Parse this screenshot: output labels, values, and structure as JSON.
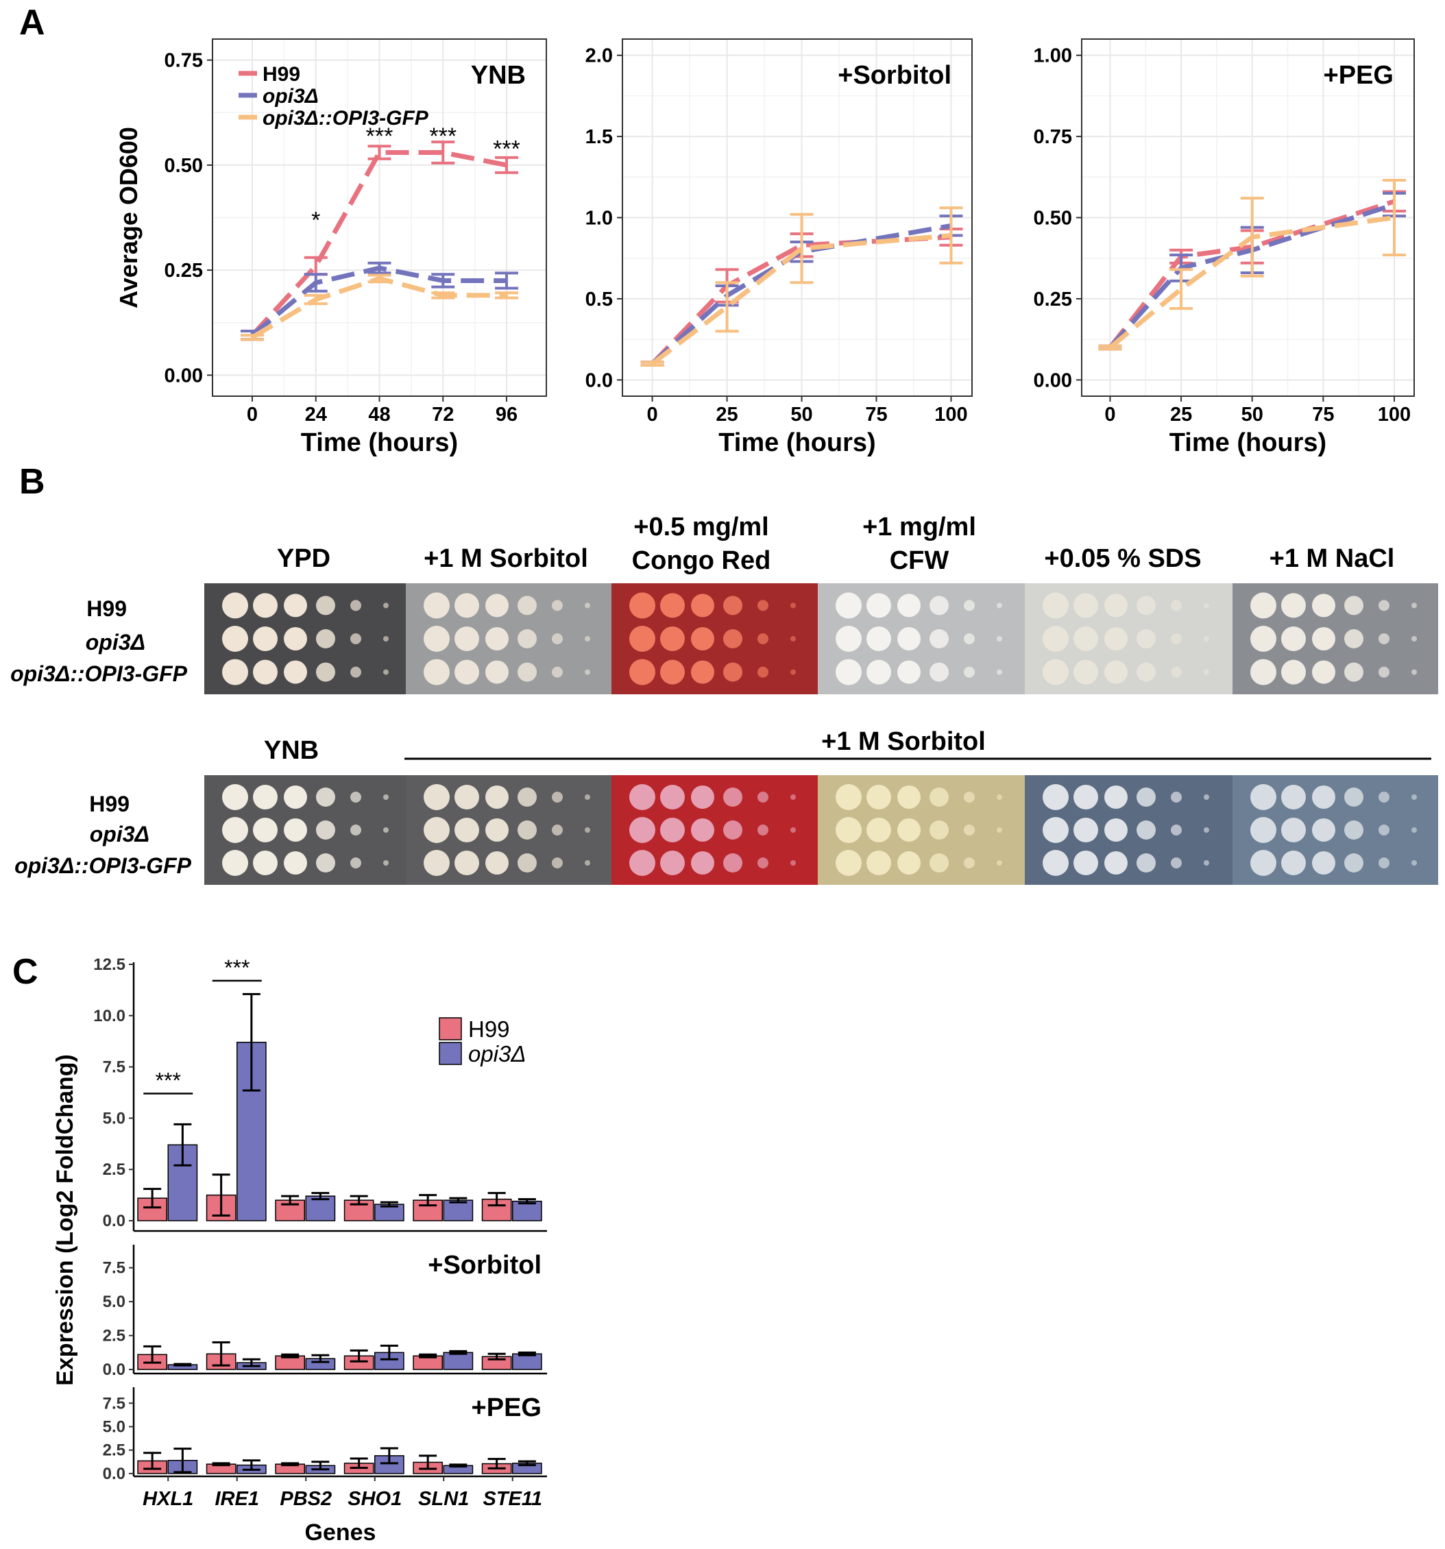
{
  "panels": {
    "a": "A",
    "b": "B",
    "c": "C"
  },
  "colors": {
    "h99": "#e8727f",
    "opi3": "#7474bd",
    "comp": "#f7bf80",
    "grid": "#e8e8e8",
    "text": "#000000"
  },
  "growth_legend": [
    {
      "label": "H99",
      "italic": false,
      "color_key": "h99"
    },
    {
      "label": "opi3Δ",
      "italic": true,
      "color_key": "opi3"
    },
    {
      "label": "opi3Δ::OPI3-GFP",
      "italic": true,
      "color_key": "comp"
    }
  ],
  "plates": {
    "row1_conditions": [
      {
        "line1": "",
        "line2": "YPD",
        "bg": "#4a4a4c",
        "colony": "#efe4d6"
      },
      {
        "line1": "",
        "line2": "+1 M Sorbitol",
        "bg": "#9a9c9e",
        "colony": "#ece4d8"
      },
      {
        "line1": "+0.5 mg/ml",
        "line2": "Congo Red",
        "bg": "#a32a2a",
        "colony": "#f07a60"
      },
      {
        "line1": "+1 mg/ml",
        "line2": "CFW",
        "bg": "#bcbec0",
        "colony": "#f4f2ee"
      },
      {
        "line1": "",
        "line2": "+0.05 % SDS",
        "bg": "#d4d4d0",
        "colony": "#e8e4da"
      },
      {
        "line1": "",
        "line2": "+1 M NaCl",
        "bg": "#8a8e93",
        "colony": "#eeeae2"
      }
    ],
    "row2_first": "YNB",
    "row2_span": "+1 M Sorbitol",
    "row2_plates": [
      {
        "bg": "#58585a",
        "colony": "#f1ece2"
      },
      {
        "bg": "#5d5d5f",
        "colony": "#e8e0d2"
      },
      {
        "bg": "#b8262c",
        "colony": "#e6a0b4"
      },
      {
        "bg": "#c8bb8e",
        "colony": "#f0e6c0"
      },
      {
        "bg": "#5a6b82",
        "colony": "#dfe3e8"
      },
      {
        "bg": "#6c7f94",
        "colony": "#d6dce2"
      }
    ],
    "strains": [
      {
        "text": "H99",
        "italic": false
      },
      {
        "text": "opi3Δ",
        "italic": true
      },
      {
        "text": "opi3Δ::OPI3-GFP",
        "italic": true
      }
    ]
  },
  "chart_data": [
    {
      "type": "line",
      "title": "YNB",
      "xlabel": "Time (hours)",
      "ylabel": "Average OD600",
      "xlim": [
        -15,
        111
      ],
      "ylim": [
        -0.05,
        0.8
      ],
      "xticks": [
        0,
        24,
        48,
        72,
        96
      ],
      "xtick_labels": [
        "0",
        "24",
        "48",
        "72",
        "96"
      ],
      "yticks": [
        0,
        0.25,
        0.5,
        0.75
      ],
      "ytick_labels": [
        "0.00",
        "0.25",
        "0.50",
        "0.75"
      ],
      "series": [
        {
          "name": "H99",
          "color_key": "h99",
          "x": [
            0,
            24,
            48,
            72,
            96
          ],
          "y": [
            0.095,
            0.26,
            0.53,
            0.53,
            0.5
          ],
          "err": [
            0.01,
            0.02,
            0.015,
            0.025,
            0.018
          ]
        },
        {
          "name": "opi3Δ",
          "color_key": "opi3",
          "x": [
            0,
            24,
            48,
            72,
            96
          ],
          "y": [
            0.095,
            0.22,
            0.255,
            0.225,
            0.225
          ],
          "err": [
            0.01,
            0.02,
            0.012,
            0.015,
            0.018
          ]
        },
        {
          "name": "opi3Δ::OPI3-GFP",
          "color_key": "comp",
          "x": [
            0,
            24,
            48,
            72,
            96
          ],
          "y": [
            0.09,
            0.18,
            0.23,
            0.19,
            0.19
          ],
          "err": [
            0.005,
            0.01,
            0.008,
            0.006,
            0.006
          ]
        }
      ],
      "annotations": [
        {
          "x": 24,
          "y": 0.37,
          "text": "*"
        },
        {
          "x": 48,
          "y": 0.57,
          "text": "***"
        },
        {
          "x": 72,
          "y": 0.57,
          "text": "***"
        },
        {
          "x": 96,
          "y": 0.54,
          "text": "***"
        }
      ]
    },
    {
      "type": "line",
      "title": "+Sorbitol",
      "xlabel": "Time (hours)",
      "ylabel": "",
      "xlim": [
        -10,
        107
      ],
      "ylim": [
        -0.1,
        2.1
      ],
      "xticks": [
        0,
        25,
        50,
        75,
        100
      ],
      "xtick_labels": [
        "0",
        "25",
        "50",
        "75",
        "100"
      ],
      "yticks": [
        0,
        0.5,
        1.0,
        1.5,
        2.0
      ],
      "ytick_labels": [
        "0.0",
        "0.5",
        "1.0",
        "1.5",
        "2.0"
      ],
      "series": [
        {
          "name": "H99",
          "color_key": "h99",
          "x": [
            0,
            25,
            50,
            100
          ],
          "y": [
            0.1,
            0.58,
            0.83,
            0.88
          ],
          "err": [
            0.01,
            0.1,
            0.07,
            0.05
          ]
        },
        {
          "name": "opi3Δ",
          "color_key": "opi3",
          "x": [
            0,
            25,
            50,
            100
          ],
          "y": [
            0.1,
            0.52,
            0.79,
            0.95
          ],
          "err": [
            0.01,
            0.06,
            0.06,
            0.06
          ]
        },
        {
          "name": "opi3Δ::OPI3-GFP",
          "color_key": "comp",
          "x": [
            0,
            25,
            50,
            100
          ],
          "y": [
            0.1,
            0.45,
            0.81,
            0.89
          ],
          "err": [
            0.01,
            0.15,
            0.21,
            0.17
          ]
        }
      ],
      "annotations": []
    },
    {
      "type": "line",
      "title": "+PEG",
      "xlabel": "Time (hours)",
      "ylabel": "",
      "xlim": [
        -10,
        107
      ],
      "ylim": [
        -0.05,
        1.05
      ],
      "xticks": [
        0,
        25,
        50,
        75,
        100
      ],
      "xtick_labels": [
        "0",
        "25",
        "50",
        "75",
        "100"
      ],
      "yticks": [
        0,
        0.25,
        0.5,
        0.75,
        1.0
      ],
      "ytick_labels": [
        "0.00",
        "0.25",
        "0.50",
        "0.75",
        "1.00"
      ],
      "series": [
        {
          "name": "H99",
          "color_key": "h99",
          "x": [
            0,
            25,
            50,
            100
          ],
          "y": [
            0.1,
            0.38,
            0.41,
            0.55
          ],
          "err": [
            0.005,
            0.02,
            0.05,
            0.03
          ]
        },
        {
          "name": "opi3Δ",
          "color_key": "opi3",
          "x": [
            0,
            25,
            50,
            100
          ],
          "y": [
            0.1,
            0.345,
            0.4,
            0.54
          ],
          "err": [
            0.005,
            0.04,
            0.07,
            0.035
          ]
        },
        {
          "name": "opi3Δ::OPI3-GFP",
          "color_key": "comp",
          "x": [
            0,
            25,
            50,
            100
          ],
          "y": [
            0.1,
            0.28,
            0.44,
            0.5
          ],
          "err": [
            0.005,
            0.06,
            0.12,
            0.115
          ]
        }
      ],
      "annotations": []
    },
    {
      "type": "bar",
      "title": "",
      "xlabel": "Genes",
      "ylabel": "Expression (Log2 FoldChang)",
      "categories": [
        "HXL1",
        "IRE1",
        "PBS2",
        "SHO1",
        "SLN1",
        "STE11"
      ],
      "legend": [
        {
          "name": "H99",
          "italic": false,
          "color_key": "h99"
        },
        {
          "name": "opi3Δ",
          "italic": true,
          "color_key": "opi3"
        }
      ],
      "panels": [
        {
          "label": "",
          "ylim": [
            -0.5,
            12.6
          ],
          "yticks": [
            0,
            2.5,
            5.0,
            7.5,
            10.0,
            12.5
          ],
          "ytick_labels": [
            "0.0",
            "2.5",
            "5.0",
            "7.5",
            "10.0",
            "12.5"
          ],
          "series": [
            {
              "name": "H99",
              "color_key": "h99",
              "values": [
                1.1,
                1.25,
                1.0,
                1.0,
                1.0,
                1.05
              ],
              "err": [
                0.45,
                1.0,
                0.2,
                0.2,
                0.25,
                0.3
              ]
            },
            {
              "name": "opi3Δ",
              "color_key": "opi3",
              "values": [
                3.7,
                8.7,
                1.2,
                0.8,
                1.0,
                0.95
              ],
              "err": [
                1.0,
                2.35,
                0.15,
                0.1,
                0.1,
                0.1
              ]
            }
          ],
          "significance": [
            {
              "category_index": 0,
              "y": 6.2,
              "text": "***"
            },
            {
              "category_index": 1,
              "y": 11.7,
              "text": "***"
            }
          ]
        },
        {
          "label": "+Sorbitol",
          "ylim": [
            -0.3,
            9.2
          ],
          "yticks": [
            0,
            2.5,
            5.0,
            7.5
          ],
          "ytick_labels": [
            "0.0",
            "2.5",
            "5.0",
            "7.5"
          ],
          "series": [
            {
              "name": "H99",
              "color_key": "h99",
              "values": [
                1.1,
                1.15,
                1.0,
                1.0,
                1.0,
                0.95
              ],
              "err": [
                0.6,
                0.85,
                0.1,
                0.4,
                0.1,
                0.2
              ]
            },
            {
              "name": "opi3Δ",
              "color_key": "opi3",
              "values": [
                0.35,
                0.5,
                0.8,
                1.25,
                1.25,
                1.15
              ],
              "err": [
                0.05,
                0.25,
                0.25,
                0.5,
                0.1,
                0.1
              ]
            }
          ],
          "significance": []
        },
        {
          "label": "+PEG",
          "ylim": [
            -0.3,
            9.2
          ],
          "yticks": [
            0,
            2.5,
            5.0,
            7.5
          ],
          "ytick_labels": [
            "0.0",
            "2.5",
            "5.0",
            "7.5"
          ],
          "series": [
            {
              "name": "H99",
              "color_key": "h99",
              "values": [
                1.35,
                1.0,
                1.0,
                1.1,
                1.2,
                1.05
              ],
              "err": [
                0.85,
                0.1,
                0.1,
                0.5,
                0.7,
                0.5
              ]
            },
            {
              "name": "opi3Δ",
              "color_key": "opi3",
              "values": [
                1.4,
                0.9,
                0.85,
                1.9,
                0.85,
                1.1
              ],
              "err": [
                1.25,
                0.5,
                0.4,
                0.8,
                0.1,
                0.2
              ]
            }
          ],
          "significance": []
        }
      ]
    }
  ]
}
